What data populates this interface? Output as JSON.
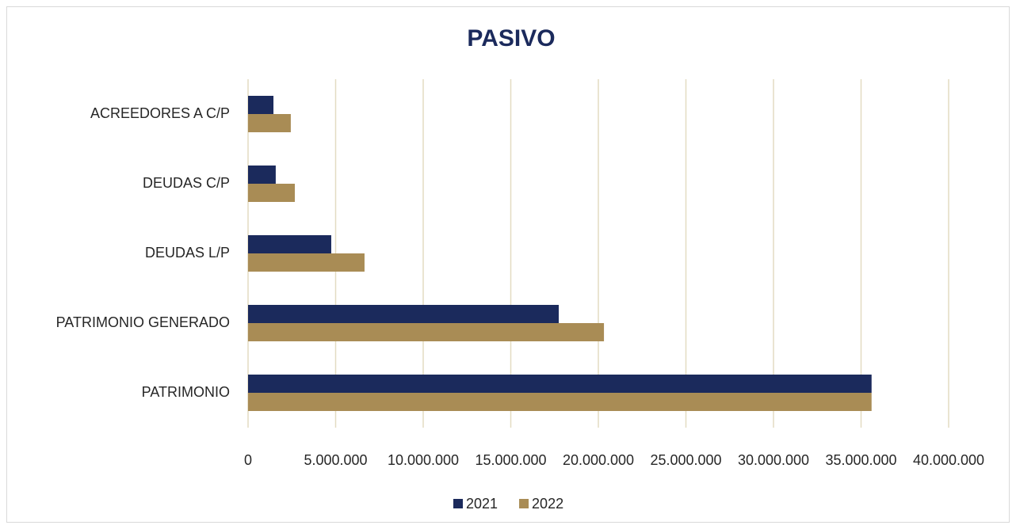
{
  "chart_data": {
    "type": "barh",
    "title": "PASIVO",
    "categories": [
      "ACREEDORES  A C/P",
      "DEUDAS C/P",
      "DEUDAS L/P",
      "PATRIMONIO GENERADO",
      "PATRIMONIO"
    ],
    "series": [
      {
        "name": "2021",
        "color": "#1b2a5c",
        "values": [
          1450000,
          1580000,
          4750000,
          17740000,
          35600000
        ]
      },
      {
        "name": "2022",
        "color": "#a98c55",
        "values": [
          2440000,
          2670000,
          6650000,
          20320000,
          35600000
        ]
      }
    ],
    "xlim": [
      0,
      40000000
    ],
    "xticks": [
      0,
      {
        "value": 5000000,
        "label": "5.000.000"
      },
      {
        "value": 10000000,
        "label": "10.000.000"
      },
      {
        "value": 15000000,
        "label": "15.000.000"
      },
      {
        "value": 20000000,
        "label": "20.000.000"
      },
      {
        "value": 25000000,
        "label": "25.000.000"
      },
      {
        "value": 30000000,
        "label": "30.000.000"
      },
      {
        "value": 35000000,
        "label": "35.000.000"
      },
      {
        "value": 40000000,
        "label": "40.000.000"
      }
    ],
    "grid": true,
    "legend": "bottom"
  }
}
